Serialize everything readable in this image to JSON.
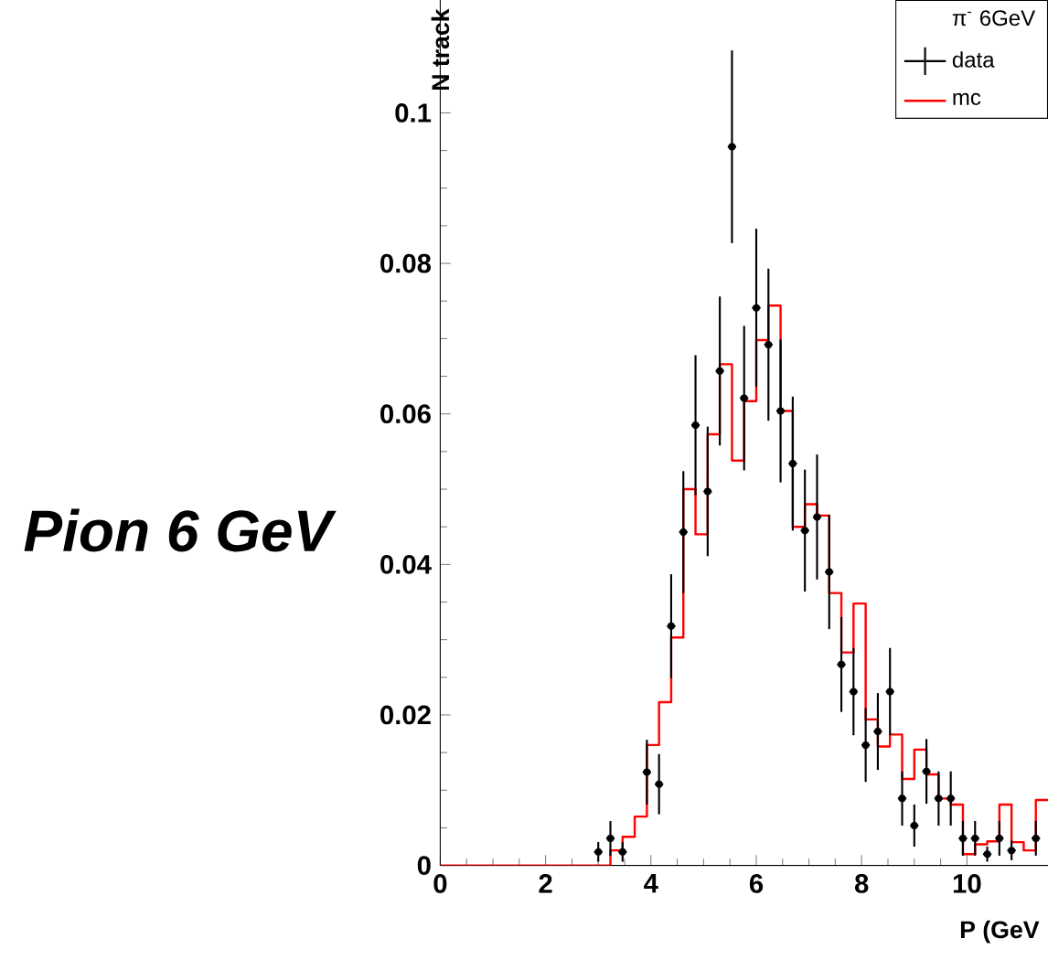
{
  "chart_data": {
    "type": "histogram",
    "title": "Pion 6 GeV",
    "xlabel": "P (GeV",
    "ylabel": "N track",
    "legend_title": "π$^{-}$ 6GeV",
    "legend": "top right",
    "xlim": [
      0,
      11.5385
    ],
    "ylim": [
      0,
      0.115
    ],
    "xticks": [
      0,
      2,
      4,
      6,
      8,
      10
    ],
    "yticks": [
      0,
      0.02,
      0.04,
      0.06,
      0.08,
      0.1
    ],
    "bins": [
      0,
      0.2308,
      0.4615,
      0.6923,
      0.9231,
      1.1538,
      1.3846,
      1.6154,
      1.8462,
      2.0769,
      2.3077,
      2.5385,
      2.7692,
      3.0,
      3.2308,
      3.4615,
      3.6923,
      3.9231,
      4.1538,
      4.3846,
      4.6154,
      4.8462,
      5.0769,
      5.3077,
      5.5385,
      5.7692,
      6.0,
      6.2308,
      6.4615,
      6.6923,
      6.9231,
      7.1538,
      7.3846,
      7.6154,
      7.8462,
      8.0769,
      8.3077,
      8.5385,
      8.7692,
      9.0,
      9.2308,
      9.4615,
      9.6923,
      9.9231,
      10.1538,
      10.3846,
      10.6154,
      10.8462,
      11.0769,
      11.3077,
      11.5385
    ],
    "series": [
      {
        "name": "data",
        "type": "scatter",
        "color": "#000000",
        "marker": "circle",
        "x": [
          3.0,
          3.2308,
          3.4615,
          3.9231,
          4.1538,
          4.3846,
          4.6154,
          4.8462,
          5.0769,
          5.3077,
          5.5385,
          5.7692,
          6.0,
          6.2308,
          6.4615,
          6.6923,
          6.9231,
          7.1538,
          7.3846,
          7.6154,
          7.8462,
          8.0769,
          8.3077,
          8.5385,
          8.7692,
          9.0,
          9.2308,
          9.4615,
          9.6923,
          9.9231,
          10.1538,
          10.3846,
          10.6154,
          10.8462,
          11.3077
        ],
        "values": [
          0.0018,
          0.0036,
          0.0018,
          0.0124,
          0.0108,
          0.0318,
          0.0443,
          0.0585,
          0.0497,
          0.0657,
          0.0955,
          0.0621,
          0.0741,
          0.0692,
          0.0604,
          0.0534,
          0.0445,
          0.0463,
          0.039,
          0.0267,
          0.0231,
          0.016,
          0.0178,
          0.0231,
          0.0089,
          0.0053,
          0.0125,
          0.0089,
          0.0089,
          0.0036,
          0.0036,
          0.0015,
          0.0036,
          0.002,
          0.0036
        ],
        "errors": [
          0.0013,
          0.0023,
          0.0013,
          0.0043,
          0.004,
          0.0069,
          0.0081,
          0.0093,
          0.0086,
          0.0099,
          0.0128,
          0.0096,
          0.0105,
          0.0101,
          0.0095,
          0.0089,
          0.0081,
          0.0083,
          0.0076,
          0.0063,
          0.0058,
          0.0049,
          0.0051,
          0.0058,
          0.0036,
          0.0028,
          0.0043,
          0.0036,
          0.0036,
          0.0023,
          0.0023,
          0.001,
          0.0023,
          0.0013,
          0.0023
        ],
        "xerrors": [
          0.08,
          0.08,
          0.08,
          0.08,
          0.08,
          0.08,
          0.08,
          0.08,
          0.08,
          0.08,
          0.08,
          0.08,
          0.08,
          0.08,
          0.08,
          0.08,
          0.08,
          0.08,
          0.08,
          0.08,
          0.08,
          0.08,
          0.08,
          0.08,
          0.08,
          0.08,
          0.08,
          0.08,
          0.08,
          0.08,
          0.08,
          0.08,
          0.08,
          0.08,
          0.08
        ]
      },
      {
        "name": "mc",
        "color": "#ff0000",
        "values": [
          0,
          0,
          0,
          0,
          0,
          0,
          0,
          0,
          0,
          0,
          0,
          0,
          0,
          0,
          0.002,
          0.0038,
          0.0065,
          0.016,
          0.0217,
          0.0303,
          0.05,
          0.044,
          0.0573,
          0.0666,
          0.0538,
          0.0617,
          0.0698,
          0.0744,
          0.0604,
          0.045,
          0.048,
          0.0465,
          0.0362,
          0.0283,
          0.0348,
          0.0194,
          0.0158,
          0.0174,
          0.0115,
          0.0154,
          0.0121,
          0.0089,
          0.0081,
          0.0015,
          0.0028,
          0.0032,
          0.0081,
          0.0031,
          0.002,
          0.0087
        ]
      }
    ]
  }
}
